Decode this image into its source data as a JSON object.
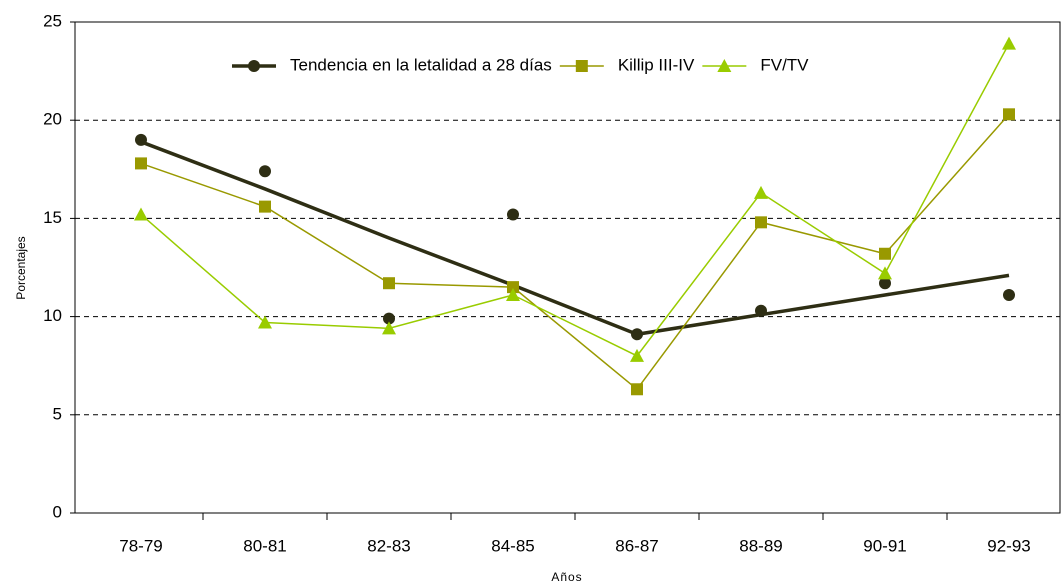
{
  "chart_data": {
    "type": "line",
    "x_label": "Años",
    "y_label": "Porcentajes",
    "categories": [
      "78-79",
      "80-81",
      "82-83",
      "84-85",
      "86-87",
      "88-89",
      "90-91",
      "92-93"
    ],
    "series": [
      {
        "name": "Tendencia en la letalidad a 28 días",
        "color": "#2e2e14",
        "marker": "circle",
        "show_line": false,
        "values": [
          19.0,
          17.4,
          9.9,
          15.2,
          9.1,
          10.3,
          11.7,
          11.1
        ],
        "trend": [
          18.9,
          16.5,
          14.0,
          11.6,
          9.1,
          10.1,
          11.1,
          12.1
        ]
      },
      {
        "name": "Killip III-IV",
        "color": "#999900",
        "marker": "square",
        "show_line": true,
        "values": [
          17.8,
          15.6,
          11.7,
          11.5,
          6.3,
          14.8,
          13.2,
          20.3
        ]
      },
      {
        "name": "FV/TV",
        "color": "#99cc00",
        "marker": "triangle",
        "show_line": true,
        "values": [
          15.2,
          9.7,
          9.4,
          11.1,
          8.0,
          16.3,
          12.2,
          23.9
        ]
      }
    ],
    "ylim": [
      0,
      25
    ],
    "yticks": [
      0,
      5,
      10,
      15,
      20,
      25
    ],
    "grid": true
  }
}
